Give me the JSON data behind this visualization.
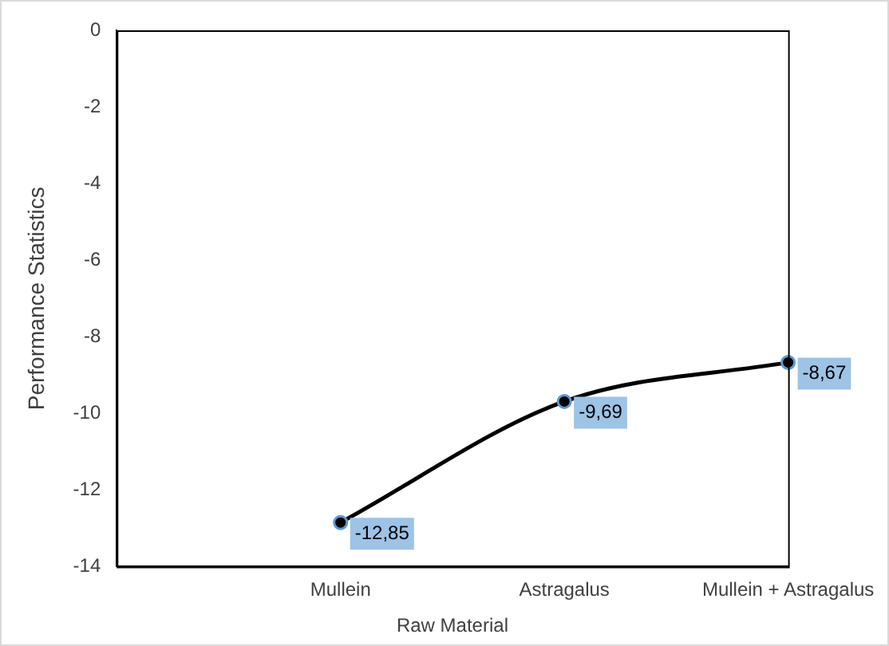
{
  "chart_data": {
    "type": "line",
    "xlabel": "Raw Material",
    "ylabel": "Performance Statistics",
    "categories": [
      null,
      "Mullein",
      "Astragalus",
      "Mullein + Astragalus"
    ],
    "series": [
      {
        "color": "#000000",
        "values": [
          null,
          -12.85,
          -9.69,
          -8.67
        ],
        "value_labels": [
          null,
          "-12,85",
          "-9,69",
          "-8,67"
        ]
      }
    ],
    "ylim": [
      -14,
      0
    ],
    "yticks": [
      -14,
      -12,
      -10,
      -8,
      -6,
      -4,
      -2,
      0
    ],
    "grid": false,
    "legend": false,
    "marker": "circle",
    "line_style": "solid"
  }
}
